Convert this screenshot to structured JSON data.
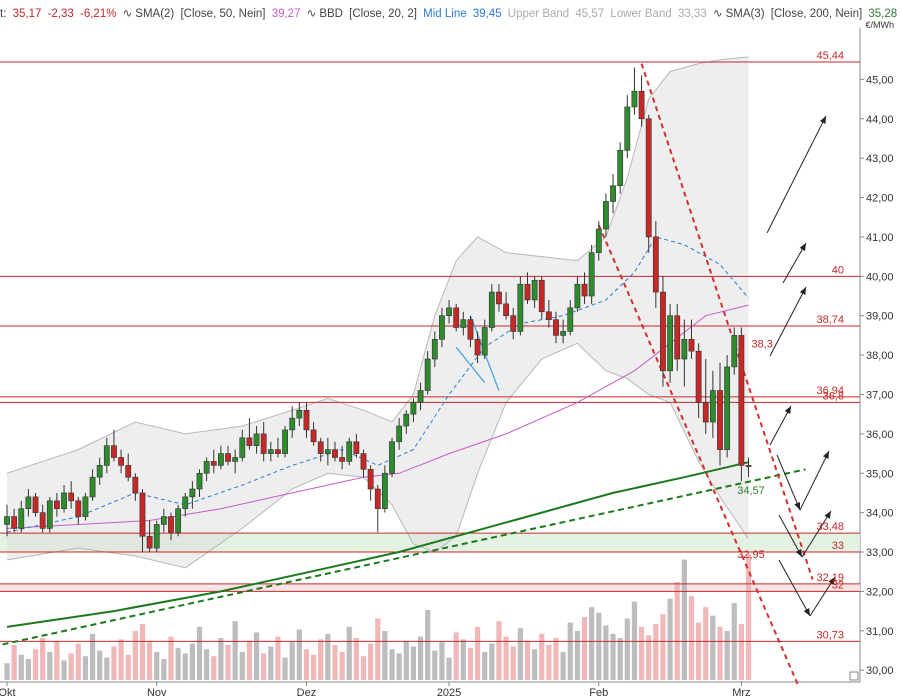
{
  "legend": {
    "price_prefix": "t:",
    "last": "35,17",
    "change": "-2,33",
    "change_pct": "-6,21%",
    "sma1_label": "SMA(2)",
    "sma1_params": "[Close, 50, Nein]",
    "sma1_value": "39,27",
    "bbd_label": "BBD",
    "bbd_params": "[Close, 20, 2]",
    "mid_label": "Mid Line",
    "mid_value": "39,45",
    "upper_label": "Upper Band",
    "upper_value": "45,57",
    "lower_label": "Lower Band",
    "lower_value": "33,33",
    "sma2_label": "SMA(3)",
    "sma2_params": "[Close, 200, Nein]",
    "sma2_value": "35,28",
    "unit": "€/MWh"
  },
  "chart_data": {
    "type": "candlestick",
    "ylim": [
      29.7,
      46.0
    ],
    "y_ticks": [
      "30,00",
      "31,00",
      "32,00",
      "33,00",
      "34,00",
      "35,00",
      "36,00",
      "37,00",
      "38,00",
      "39,00",
      "40,00",
      "41,00",
      "42,00",
      "43,00",
      "44,00",
      "45,00"
    ],
    "x_ticks": [
      "Okt",
      "Nov",
      "Dez",
      "2025",
      "Feb",
      "Mrz"
    ],
    "x_tick_index": [
      0,
      21,
      42,
      62,
      83,
      103
    ],
    "levels": [
      {
        "value": 45.44,
        "label": "45,44"
      },
      {
        "value": 40.0,
        "label": "40"
      },
      {
        "value": 38.74,
        "label": "38,74"
      },
      {
        "value": 36.94,
        "label": "36,94"
      },
      {
        "value": 36.8,
        "label": "36,8"
      },
      {
        "value": 33.48,
        "label": "33,48"
      },
      {
        "value": 33.0,
        "label": "33"
      },
      {
        "value": 32.19,
        "label": "32,19"
      },
      {
        "value": 32.0,
        "label": "32"
      },
      {
        "value": 30.73,
        "label": "30,73"
      }
    ],
    "annotations": [
      {
        "text": "38,3",
        "value": 38.3,
        "index": 104,
        "color": "#c62828"
      },
      {
        "text": "32,95",
        "value": 32.95,
        "index": 102,
        "color": "#c62828"
      },
      {
        "text": "34,57",
        "value": 34.57,
        "index": 102,
        "color": "#2e7d32"
      }
    ],
    "candles": [
      [
        33.7,
        34.2,
        33.4,
        33.9
      ],
      [
        33.9,
        34.1,
        33.5,
        33.6
      ],
      [
        33.6,
        34.3,
        33.5,
        34.1
      ],
      [
        34.1,
        34.6,
        33.9,
        34.4
      ],
      [
        34.4,
        34.5,
        33.9,
        34.0
      ],
      [
        34.0,
        34.2,
        33.5,
        33.6
      ],
      [
        33.6,
        34.4,
        33.5,
        34.3
      ],
      [
        34.3,
        34.5,
        33.9,
        34.1
      ],
      [
        34.1,
        34.7,
        34.0,
        34.5
      ],
      [
        34.5,
        34.8,
        34.1,
        34.3
      ],
      [
        34.3,
        34.4,
        33.7,
        33.9
      ],
      [
        33.9,
        34.5,
        33.8,
        34.4
      ],
      [
        34.4,
        35.1,
        34.3,
        34.9
      ],
      [
        34.9,
        35.4,
        34.7,
        35.2
      ],
      [
        35.2,
        35.9,
        35.0,
        35.7
      ],
      [
        35.7,
        36.1,
        35.3,
        35.4
      ],
      [
        35.4,
        35.6,
        35.0,
        35.2
      ],
      [
        35.2,
        35.5,
        34.8,
        34.9
      ],
      [
        34.9,
        35.0,
        34.3,
        34.5
      ],
      [
        34.5,
        34.6,
        33.0,
        33.4
      ],
      [
        33.4,
        33.8,
        33.0,
        33.1
      ],
      [
        33.1,
        33.8,
        33.0,
        33.7
      ],
      [
        33.7,
        34.1,
        33.5,
        33.9
      ],
      [
        33.9,
        34.0,
        33.3,
        33.5
      ],
      [
        33.5,
        34.2,
        33.4,
        34.1
      ],
      [
        34.1,
        34.5,
        33.9,
        34.4
      ],
      [
        34.4,
        34.8,
        34.1,
        34.6
      ],
      [
        34.6,
        35.1,
        34.4,
        35.0
      ],
      [
        35.0,
        35.4,
        34.8,
        35.3
      ],
      [
        35.3,
        35.6,
        35.0,
        35.2
      ],
      [
        35.2,
        35.7,
        35.1,
        35.5
      ],
      [
        35.5,
        35.7,
        35.2,
        35.3
      ],
      [
        35.3,
        35.6,
        35.0,
        35.4
      ],
      [
        35.4,
        36.1,
        35.3,
        35.9
      ],
      [
        35.9,
        36.4,
        35.6,
        35.7
      ],
      [
        35.7,
        36.2,
        35.5,
        36.0
      ],
      [
        36.0,
        36.3,
        35.3,
        35.5
      ],
      [
        35.5,
        35.8,
        35.3,
        35.6
      ],
      [
        35.6,
        35.9,
        35.4,
        35.5
      ],
      [
        35.5,
        36.2,
        35.4,
        36.1
      ],
      [
        36.1,
        36.7,
        35.9,
        36.4
      ],
      [
        36.4,
        36.8,
        36.2,
        36.6
      ],
      [
        36.6,
        36.8,
        35.9,
        36.1
      ],
      [
        36.1,
        36.3,
        35.7,
        35.8
      ],
      [
        35.8,
        35.9,
        35.3,
        35.5
      ],
      [
        35.5,
        35.9,
        35.2,
        35.6
      ],
      [
        35.6,
        35.8,
        35.3,
        35.4
      ],
      [
        35.4,
        35.7,
        35.1,
        35.3
      ],
      [
        35.3,
        35.9,
        35.2,
        35.8
      ],
      [
        35.8,
        36.0,
        35.4,
        35.5
      ],
      [
        35.5,
        35.6,
        34.9,
        35.1
      ],
      [
        35.1,
        35.2,
        34.3,
        34.6
      ],
      [
        34.6,
        34.7,
        33.5,
        34.1
      ],
      [
        34.1,
        35.2,
        34.0,
        35.0
      ],
      [
        35.0,
        35.9,
        34.9,
        35.8
      ],
      [
        35.8,
        36.4,
        35.6,
        36.2
      ],
      [
        36.2,
        36.6,
        36.0,
        36.5
      ],
      [
        36.5,
        36.9,
        36.3,
        36.8
      ],
      [
        36.8,
        37.3,
        36.6,
        37.1
      ],
      [
        37.1,
        38.1,
        37.0,
        37.9
      ],
      [
        37.9,
        38.6,
        37.7,
        38.4
      ],
      [
        38.4,
        39.2,
        38.2,
        39.0
      ],
      [
        39.0,
        39.4,
        38.8,
        39.2
      ],
      [
        39.2,
        39.3,
        38.6,
        38.7
      ],
      [
        38.7,
        39.1,
        38.5,
        38.9
      ],
      [
        38.9,
        39.0,
        38.2,
        38.4
      ],
      [
        38.4,
        38.6,
        37.8,
        38.0
      ],
      [
        38.0,
        38.9,
        37.9,
        38.7
      ],
      [
        38.7,
        39.8,
        38.6,
        39.6
      ],
      [
        39.6,
        39.8,
        39.1,
        39.3
      ],
      [
        39.3,
        39.6,
        38.9,
        39.0
      ],
      [
        39.0,
        39.2,
        38.4,
        38.6
      ],
      [
        38.6,
        40.0,
        38.5,
        39.8
      ],
      [
        39.8,
        40.1,
        39.3,
        39.4
      ],
      [
        39.4,
        40.0,
        39.2,
        39.9
      ],
      [
        39.9,
        40.0,
        38.9,
        39.1
      ],
      [
        39.1,
        39.4,
        38.7,
        38.9
      ],
      [
        38.9,
        39.1,
        38.3,
        38.5
      ],
      [
        38.5,
        38.9,
        38.3,
        38.6
      ],
      [
        38.6,
        39.4,
        38.5,
        39.2
      ],
      [
        39.2,
        40.0,
        39.1,
        39.8
      ],
      [
        39.8,
        40.1,
        39.3,
        39.5
      ],
      [
        39.5,
        40.8,
        39.3,
        40.6
      ],
      [
        40.6,
        41.4,
        40.4,
        41.2
      ],
      [
        41.2,
        42.1,
        41.0,
        41.9
      ],
      [
        41.9,
        42.6,
        41.6,
        42.3
      ],
      [
        42.3,
        43.4,
        42.1,
        43.2
      ],
      [
        43.2,
        44.6,
        43.0,
        44.3
      ],
      [
        44.3,
        45.3,
        44.1,
        44.7
      ],
      [
        44.7,
        45.1,
        43.8,
        44.0
      ],
      [
        44.0,
        44.1,
        40.6,
        41.0
      ],
      [
        41.0,
        41.4,
        39.2,
        39.6
      ],
      [
        39.6,
        40.0,
        37.2,
        37.6
      ],
      [
        37.6,
        39.3,
        37.3,
        39.0
      ],
      [
        39.0,
        39.3,
        37.6,
        37.9
      ],
      [
        37.9,
        38.9,
        37.2,
        38.4
      ],
      [
        38.4,
        38.9,
        37.9,
        38.1
      ],
      [
        38.1,
        38.3,
        36.4,
        36.8
      ],
      [
        36.8,
        37.9,
        36.0,
        36.3
      ],
      [
        36.3,
        37.6,
        35.9,
        37.1
      ],
      [
        37.1,
        37.8,
        35.2,
        35.6
      ],
      [
        35.6,
        38.0,
        35.4,
        37.7
      ],
      [
        37.7,
        38.7,
        37.5,
        38.5
      ],
      [
        38.5,
        38.7,
        34.8,
        35.2
      ],
      [
        35.2,
        35.4,
        34.9,
        35.17
      ]
    ],
    "volume": [
      0.12,
      0.25,
      0.18,
      0.15,
      0.22,
      0.3,
      0.2,
      0.28,
      0.14,
      0.19,
      0.26,
      0.17,
      0.33,
      0.21,
      0.16,
      0.24,
      0.29,
      0.18,
      0.35,
      0.4,
      0.27,
      0.2,
      0.15,
      0.31,
      0.23,
      0.19,
      0.26,
      0.38,
      0.22,
      0.17,
      0.3,
      0.25,
      0.42,
      0.2,
      0.28,
      0.34,
      0.19,
      0.24,
      0.31,
      0.16,
      0.27,
      0.36,
      0.22,
      0.18,
      0.29,
      0.33,
      0.25,
      0.2,
      0.38,
      0.3,
      0.17,
      0.26,
      0.44,
      0.35,
      0.22,
      0.19,
      0.28,
      0.24,
      0.31,
      0.5,
      0.21,
      0.27,
      0.16,
      0.34,
      0.29,
      0.23,
      0.38,
      0.2,
      0.26,
      0.42,
      0.31,
      0.24,
      0.37,
      0.28,
      0.22,
      0.33,
      0.25,
      0.3,
      0.2,
      0.41,
      0.35,
      0.45,
      0.52,
      0.48,
      0.39,
      0.33,
      0.3,
      0.44,
      0.56,
      0.38,
      0.32,
      0.4,
      0.47,
      0.58,
      0.7,
      0.86,
      0.6,
      0.41,
      0.52,
      0.46,
      0.38,
      0.35,
      0.55,
      0.4,
      0.9
    ],
    "sma50": [
      [
        0,
        33.6
      ],
      [
        10,
        33.7
      ],
      [
        20,
        33.8
      ],
      [
        30,
        34.1
      ],
      [
        40,
        34.5
      ],
      [
        50,
        34.9
      ],
      [
        55,
        35.0
      ],
      [
        62,
        35.5
      ],
      [
        70,
        36.0
      ],
      [
        80,
        36.8
      ],
      [
        88,
        37.6
      ],
      [
        93,
        38.3
      ],
      [
        98,
        39.0
      ],
      [
        104,
        39.27
      ]
    ],
    "sma200": [
      [
        0,
        31.1
      ],
      [
        15,
        31.5
      ],
      [
        30,
        32.0
      ],
      [
        45,
        32.6
      ],
      [
        55,
        33.0
      ],
      [
        65,
        33.5
      ],
      [
        75,
        34.0
      ],
      [
        85,
        34.5
      ],
      [
        95,
        34.9
      ],
      [
        104,
        35.28
      ]
    ],
    "bb_mid": [
      [
        0,
        33.5
      ],
      [
        10,
        33.9
      ],
      [
        18,
        34.5
      ],
      [
        25,
        34.2
      ],
      [
        33,
        34.7
      ],
      [
        40,
        35.2
      ],
      [
        47,
        35.6
      ],
      [
        52,
        35.2
      ],
      [
        57,
        35.6
      ],
      [
        62,
        37.0
      ],
      [
        67,
        38.2
      ],
      [
        72,
        38.8
      ],
      [
        78,
        39.0
      ],
      [
        84,
        39.4
      ],
      [
        88,
        40.1
      ],
      [
        91,
        41.0
      ],
      [
        95,
        40.8
      ],
      [
        100,
        40.3
      ],
      [
        104,
        39.45
      ]
    ],
    "bb_upper": [
      [
        0,
        35.0
      ],
      [
        10,
        35.6
      ],
      [
        18,
        36.3
      ],
      [
        25,
        36.0
      ],
      [
        33,
        36.2
      ],
      [
        40,
        36.6
      ],
      [
        45,
        36.9
      ],
      [
        50,
        36.6
      ],
      [
        54,
        36.3
      ],
      [
        57,
        37.0
      ],
      [
        60,
        39.0
      ],
      [
        63,
        40.4
      ],
      [
        66,
        41.0
      ],
      [
        70,
        40.6
      ],
      [
        75,
        40.5
      ],
      [
        80,
        40.4
      ],
      [
        84,
        41.0
      ],
      [
        87,
        42.5
      ],
      [
        90,
        44.5
      ],
      [
        93,
        45.2
      ],
      [
        97,
        45.4
      ],
      [
        100,
        45.5
      ],
      [
        104,
        45.57
      ]
    ],
    "bb_lower": [
      [
        0,
        32.8
      ],
      [
        10,
        33.1
      ],
      [
        18,
        32.9
      ],
      [
        25,
        32.6
      ],
      [
        33,
        33.6
      ],
      [
        40,
        34.6
      ],
      [
        45,
        35.0
      ],
      [
        50,
        34.9
      ],
      [
        54,
        34.2
      ],
      [
        57,
        33.2
      ],
      [
        60,
        33.0
      ],
      [
        63,
        33.4
      ],
      [
        66,
        35.0
      ],
      [
        70,
        36.8
      ],
      [
        75,
        37.9
      ],
      [
        80,
        38.3
      ],
      [
        84,
        37.6
      ],
      [
        87,
        37.4
      ],
      [
        90,
        37.0
      ],
      [
        93,
        36.8
      ],
      [
        97,
        35.3
      ],
      [
        100,
        34.4
      ],
      [
        104,
        33.33
      ]
    ],
    "trend_green": [
      [
        -2,
        30.6
      ],
      [
        112,
        35.1
      ]
    ],
    "trend_red_upper": [
      [
        89,
        45.4
      ],
      [
        113,
        32.3
      ]
    ],
    "trend_red_lower": [
      [
        83,
        41.3
      ],
      [
        111,
        29.6
      ]
    ]
  }
}
